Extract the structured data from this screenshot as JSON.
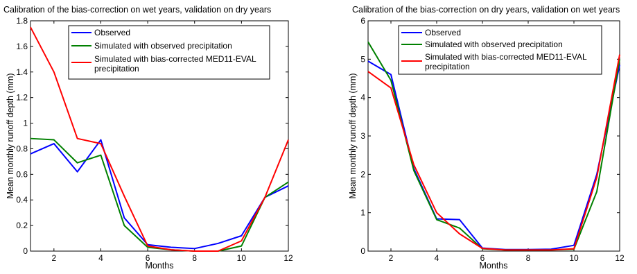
{
  "chart_data": [
    {
      "type": "line",
      "title": "Calibration of the bias-correction on wet years, validation on dry years",
      "xlabel": "Months",
      "ylabel": "Mean monthly runoff depth (mm)",
      "xlim": [
        1,
        12
      ],
      "ylim": [
        0,
        1.8
      ],
      "xticks": [
        "2",
        "4",
        "6",
        "8",
        "10",
        "12"
      ],
      "yticks": [
        "0",
        "0.2",
        "0.4",
        "0.6",
        "0.8",
        "1",
        "1.2",
        "1.4",
        "1.6",
        "1.8"
      ],
      "grid": false,
      "legend_position": "top-right",
      "x": [
        1,
        2,
        3,
        4,
        5,
        6,
        7,
        8,
        9,
        10,
        11,
        12
      ],
      "series": [
        {
          "name": "Observed",
          "color": "#0000ff",
          "values": [
            0.76,
            0.84,
            0.62,
            0.87,
            0.26,
            0.05,
            0.03,
            0.02,
            0.06,
            0.12,
            0.42,
            0.51
          ]
        },
        {
          "name": "Simulated with observed precipitation",
          "color": "#008000",
          "values": [
            0.88,
            0.87,
            0.69,
            0.75,
            0.2,
            0.03,
            0.01,
            0.0,
            0.0,
            0.04,
            0.42,
            0.54
          ]
        },
        {
          "name": "Simulated with bias-corrected MED11-EVAL precipitation",
          "color": "#ff0000",
          "values": [
            1.75,
            1.4,
            0.88,
            0.84,
            0.43,
            0.04,
            0.01,
            0.0,
            0.0,
            0.08,
            0.42,
            0.87
          ]
        }
      ]
    },
    {
      "type": "line",
      "title": "Calibration of the bias-correction on dry years, validation on wet years",
      "xlabel": "Months",
      "ylabel": "Mean monthly runoff depth (mm)",
      "xlim": [
        1,
        12
      ],
      "ylim": [
        0,
        6
      ],
      "xticks": [
        "2",
        "4",
        "6",
        "8",
        "10",
        "12"
      ],
      "yticks": [
        "0",
        "1",
        "2",
        "3",
        "4",
        "5",
        "6"
      ],
      "grid": false,
      "legend_position": "top-right",
      "x": [
        1,
        2,
        3,
        4,
        5,
        6,
        7,
        8,
        9,
        10,
        11,
        12
      ],
      "series": [
        {
          "name": "Observed",
          "color": "#0000ff",
          "values": [
            4.95,
            4.6,
            2.15,
            0.84,
            0.82,
            0.08,
            0.04,
            0.04,
            0.05,
            0.15,
            2.0,
            4.85
          ]
        },
        {
          "name": "Simulated with observed precipitation",
          "color": "#008000",
          "values": [
            5.45,
            4.45,
            2.1,
            0.82,
            0.6,
            0.06,
            0.03,
            0.03,
            0.03,
            0.05,
            1.55,
            5.0
          ]
        },
        {
          "name": "Simulated with bias-corrected MED11-EVAL precipitation",
          "color": "#ff0000",
          "values": [
            4.68,
            4.25,
            2.25,
            1.0,
            0.45,
            0.07,
            0.03,
            0.03,
            0.03,
            0.06,
            1.92,
            5.12
          ]
        }
      ]
    }
  ]
}
